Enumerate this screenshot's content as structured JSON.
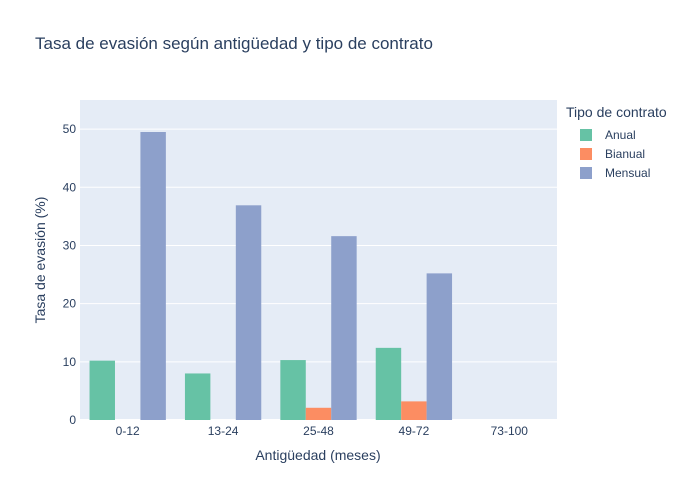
{
  "chart_data": {
    "type": "bar",
    "title": "Tasa de evasión según antigüedad y tipo de contrato",
    "xlabel": "Antigüedad (meses)",
    "ylabel": "Tasa de evasión (%)",
    "categories": [
      "0-12",
      "13-24",
      "25-48",
      "49-72",
      "73-100"
    ],
    "ylim": [
      0,
      55
    ],
    "yticks": [
      0,
      10,
      20,
      30,
      40,
      50
    ],
    "grid": true,
    "legend": {
      "title": "Tipo de contrato",
      "placement": "right"
    },
    "series": [
      {
        "name": "Anual",
        "color": "#66c2a5",
        "values": [
          10.2,
          8.0,
          10.3,
          12.4,
          0
        ]
      },
      {
        "name": "Bianual",
        "color": "#fc8d62",
        "values": [
          0,
          0,
          2.1,
          3.2,
          0
        ]
      },
      {
        "name": "Mensual",
        "color": "#8da0cb",
        "values": [
          49.5,
          36.9,
          31.6,
          25.2,
          0
        ]
      }
    ],
    "plot_background": "#e5ecf6"
  }
}
